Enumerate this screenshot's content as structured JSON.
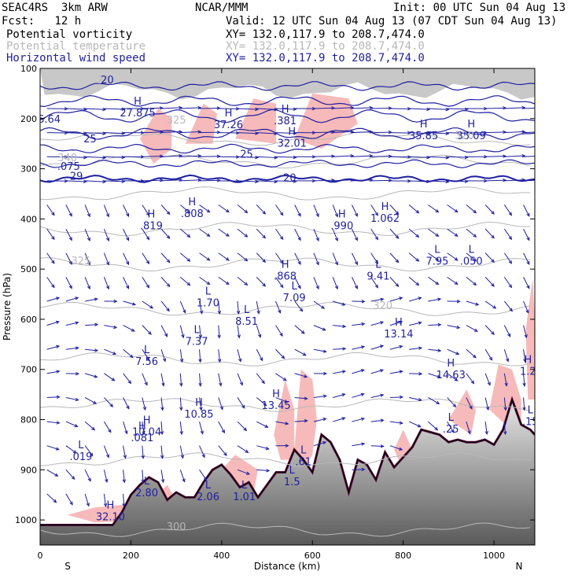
{
  "header": {
    "model": "SEAC4RS  3km ARW",
    "center": "NCAR/MMM",
    "init": "Init: 00 UTC Sun 04 Aug 13",
    "fcst": "Fcst:   12 h",
    "valid": "Valid: 12 UTC Sun 04 Aug 13 (07 CDT Sun 04 Aug 13)"
  },
  "fields": [
    {
      "name": "Potential vorticity",
      "xy": "XY= 132.0,117.9 to 208.7,474.0",
      "color": "#000000"
    },
    {
      "name": "Potential temperature",
      "xy": "XY= 132.0,117.9 to 208.7,474.0",
      "color": "#b8b8b8"
    },
    {
      "name": "Horizontal wind speed",
      "xy": "XY= 132.0,117.9 to 208.7,474.0",
      "color": "#1f1fa0"
    }
  ],
  "colors": {
    "pv_fill": "#f7b6b6",
    "terrain": "#777777",
    "theta": "#b8b8b8",
    "wind": "#1f1fa0",
    "pv_line": "#5a1040"
  },
  "chart_data": {
    "type": "cross-section",
    "xlabel": "Distance (km)",
    "ylabel": "Pressure (hPa)",
    "xlim": [
      0,
      1090
    ],
    "ylim": [
      1050,
      100
    ],
    "x_ticks": [
      0,
      200,
      400,
      600,
      800,
      1000
    ],
    "y_ticks": [
      100,
      200,
      300,
      400,
      500,
      600,
      700,
      800,
      900,
      1000
    ],
    "orientation_labels": {
      "left": "S",
      "right": "N"
    },
    "theta_contour_labels": [
      {
        "text": "340",
        "x": 60,
        "p": 285
      },
      {
        "text": "325",
        "x": 90,
        "p": 490
      },
      {
        "text": "320",
        "x": 755,
        "p": 580
      },
      {
        "text": "320",
        "x": 935,
        "p": 240
      },
      {
        "text": "300",
        "x": 300,
        "p": 1020
      },
      {
        "text": "325",
        "x": 300,
        "p": 210
      },
      {
        "text": "20",
        "x": 140,
        "p": 130
      }
    ],
    "wind_contour_labels": [
      {
        "text": "20",
        "x": 148,
        "p": 130
      },
      {
        "text": "25",
        "x": 110,
        "p": 247
      },
      {
        "text": "29",
        "x": 80,
        "p": 322
      },
      {
        "text": ".075",
        "x": 63,
        "p": 302
      },
      {
        "text": "20",
        "x": 550,
        "p": 325
      },
      {
        "text": "25",
        "x": 455,
        "p": 278
      },
      {
        "text": "6.64",
        "x": 20,
        "p": 208
      }
    ],
    "extrema": [
      {
        "kind": "H",
        "value": "27.875",
        "x": 215,
        "p": 185
      },
      {
        "kind": "H",
        "value": "37.26",
        "x": 415,
        "p": 208
      },
      {
        "kind": "H",
        "value": "32.01",
        "x": 555,
        "p": 245
      },
      {
        "kind": "H",
        "value": ".381",
        "x": 540,
        "p": 200
      },
      {
        "kind": "H",
        "value": "35.85",
        "x": 845,
        "p": 230
      },
      {
        "kind": "H",
        "value": "35.09",
        "x": 950,
        "p": 230
      },
      {
        "kind": "H",
        "value": ".808",
        "x": 335,
        "p": 385
      },
      {
        "kind": "H",
        "value": ".819",
        "x": 245,
        "p": 410
      },
      {
        "kind": "H",
        "value": ".990",
        "x": 665,
        "p": 410
      },
      {
        "kind": "H",
        "value": "1.062",
        "x": 760,
        "p": 395
      },
      {
        "kind": "L",
        "value": "7.95",
        "x": 875,
        "p": 480
      },
      {
        "kind": "L",
        "value": ".050",
        "x": 950,
        "p": 480
      },
      {
        "kind": "L",
        "value": "9.41",
        "x": 745,
        "p": 510
      },
      {
        "kind": "H",
        "value": ".868",
        "x": 540,
        "p": 510
      },
      {
        "kind": "L",
        "value": "7.09",
        "x": 560,
        "p": 553
      },
      {
        "kind": "L",
        "value": "1.70",
        "x": 370,
        "p": 563
      },
      {
        "kind": "L",
        "value": "8.51",
        "x": 455,
        "p": 600
      },
      {
        "kind": "H",
        "value": "13.14",
        "x": 790,
        "p": 625
      },
      {
        "kind": "L",
        "value": "7.37",
        "x": 345,
        "p": 640
      },
      {
        "kind": "L",
        "value": "7.56",
        "x": 235,
        "p": 680
      },
      {
        "kind": "H",
        "value": "14.63",
        "x": 905,
        "p": 707
      },
      {
        "kind": "H",
        "value": "13.45",
        "x": 520,
        "p": 768
      },
      {
        "kind": "H",
        "value": "10.85",
        "x": 350,
        "p": 785
      },
      {
        "kind": "H",
        "value": "10.04",
        "x": 235,
        "p": 820
      },
      {
        "kind": "H",
        "value": ".081",
        "x": 225,
        "p": 832
      },
      {
        "kind": "L",
        "value": ".019",
        "x": 90,
        "p": 870
      },
      {
        "kind": "L",
        "value": ".61",
        "x": 580,
        "p": 880
      },
      {
        "kind": "L",
        "value": "1.5",
        "x": 555,
        "p": 920
      },
      {
        "kind": "L",
        "value": "2.80",
        "x": 235,
        "p": 942
      },
      {
        "kind": "L",
        "value": "2.06",
        "x": 370,
        "p": 950
      },
      {
        "kind": "L",
        "value": "1.01",
        "x": 450,
        "p": 950
      },
      {
        "kind": "H",
        "value": "32.10",
        "x": 155,
        "p": 990
      },
      {
        "kind": "L",
        "value": ".25",
        "x": 905,
        "p": 815
      },
      {
        "kind": "L",
        "value": ".15",
        "x": 1080,
        "p": 800
      },
      {
        "kind": "H",
        "value": "1.2",
        "x": 1075,
        "p": 700
      }
    ],
    "terrain_profile": {
      "x": [
        0,
        20,
        40,
        60,
        80,
        100,
        120,
        140,
        160,
        180,
        200,
        220,
        240,
        260,
        280,
        300,
        320,
        340,
        360,
        380,
        400,
        420,
        440,
        460,
        480,
        500,
        520,
        540,
        560,
        580,
        600,
        620,
        640,
        660,
        680,
        700,
        720,
        740,
        760,
        780,
        800,
        820,
        840,
        860,
        880,
        900,
        920,
        940,
        960,
        980,
        1000,
        1020,
        1040,
        1060,
        1080,
        1090
      ],
      "p": [
        1010,
        1010,
        1010,
        1010,
        1010,
        1010,
        1010,
        1010,
        1010,
        985,
        950,
        930,
        915,
        925,
        960,
        945,
        955,
        955,
        925,
        900,
        890,
        910,
        935,
        925,
        955,
        930,
        905,
        905,
        860,
        880,
        905,
        830,
        845,
        880,
        945,
        880,
        890,
        920,
        865,
        895,
        875,
        855,
        820,
        825,
        830,
        845,
        840,
        845,
        845,
        840,
        850,
        820,
        760,
        810,
        820,
        830
      ]
    },
    "grid": false
  }
}
